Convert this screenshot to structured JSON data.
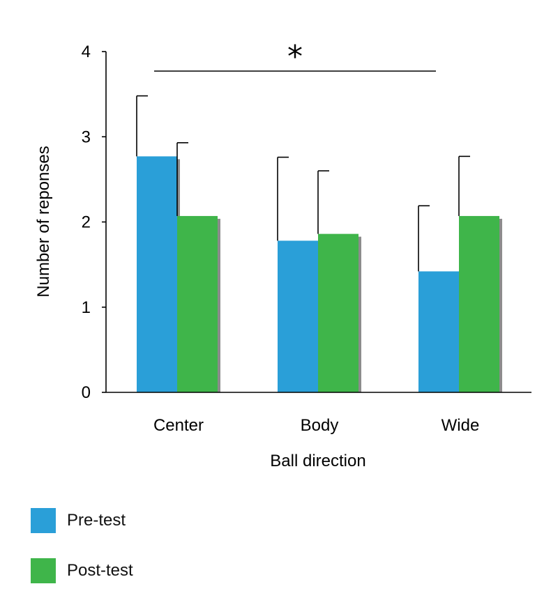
{
  "chart_data": {
    "type": "bar",
    "title": "",
    "xlabel": "Ball direction",
    "ylabel": "Number of reponses",
    "categories": [
      "Center",
      "Body",
      "Wide"
    ],
    "ylim": [
      0,
      4
    ],
    "yticks": [
      "0",
      "1",
      "2",
      "3",
      "4"
    ],
    "series": [
      {
        "name": "Pre-test",
        "color": "#2a9fd8",
        "values": [
          2.77,
          1.78,
          1.42
        ],
        "errors": [
          0.71,
          0.98,
          0.77
        ]
      },
      {
        "name": "Post-test",
        "color": "#3fb54a",
        "values": [
          2.07,
          1.86,
          2.07
        ],
        "errors": [
          0.86,
          0.74,
          0.7
        ]
      }
    ],
    "significance": {
      "label": "*",
      "from": "Center",
      "to": "Wide"
    },
    "grid": false,
    "legend_position": "bottom-left"
  }
}
